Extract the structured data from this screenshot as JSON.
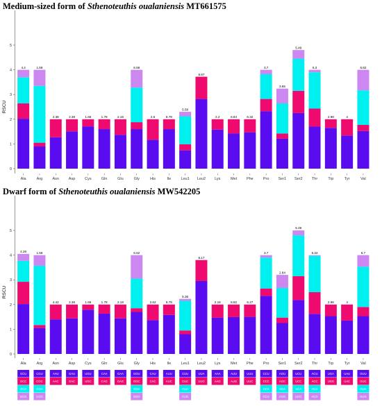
{
  "colors": {
    "c1": "#5a0cf0",
    "c2": "#ee0a6e",
    "c3": "#00f0f0",
    "c4": "#cc88f0"
  },
  "chart_data": [
    {
      "type": "bar",
      "stacked": true,
      "title_parts": [
        "Medium-sized form of ",
        "Sthenoteuthis oualaniensis",
        " MT661575"
      ],
      "ylabel": "RSCU",
      "ylim": [
        0,
        5
      ],
      "yticks": [
        0,
        1,
        2,
        3,
        4,
        5
      ],
      "categories": [
        "Ala",
        "Arg",
        "Asn",
        "Asp",
        "Cys",
        "Gln",
        "Glu",
        "Gly",
        "His",
        "Ile",
        "Leu1",
        "Leu2",
        "Lys",
        "Met",
        "Phe",
        "Pro",
        "Ser1",
        "Ser2",
        "Thr",
        "Trp",
        "Tyr",
        "Val"
      ],
      "stacks": [
        [
          2.02,
          0.62,
          1.06,
          0.3
        ],
        [
          0.9,
          0.15,
          2.3,
          0.65
        ],
        [
          1.27,
          0.73
        ],
        [
          1.51,
          0.49
        ],
        [
          1.71,
          0.29
        ],
        [
          1.6,
          0.4
        ],
        [
          1.37,
          0.63
        ],
        [
          1.6,
          0.28,
          1.4,
          0.72
        ],
        [
          1.17,
          0.83
        ],
        [
          1.6,
          0.4
        ],
        [
          0.74,
          0.25,
          1.13,
          0.18
        ],
        [
          2.82,
          0.9
        ],
        [
          1.58,
          0.42
        ],
        [
          1.42,
          0.58
        ],
        [
          1.47,
          0.53
        ],
        [
          2.32,
          0.5,
          1.0,
          0.18
        ],
        [
          1.21,
          0.21,
          1.22,
          0.6
        ],
        [
          2.25,
          0.9,
          1.3,
          0.35
        ],
        [
          1.7,
          0.73,
          1.47,
          0.1
        ],
        [
          1.65,
          0.35
        ],
        [
          1.34,
          0.66
        ],
        [
          1.52,
          0.25,
          1.4,
          0.83
        ]
      ],
      "labels": [
        "4.4",
        "1.58",
        "4.38",
        "2.38",
        "1.66",
        "1.78",
        "2.18",
        "6.58",
        "2.6",
        "8.79",
        "5.58",
        "8.97",
        "2.2",
        "6.84",
        "6.32",
        "3.7",
        "3.65",
        "5.49",
        "5.3",
        "2.98",
        "4",
        "6.82"
      ]
    },
    {
      "type": "bar",
      "stacked": true,
      "title_parts": [
        "Dwarf form of ",
        "Sthenoteuthis oualaniensis",
        " MW542205"
      ],
      "ylabel": "RSCU",
      "ylim": [
        0,
        5
      ],
      "yticks": [
        0,
        1,
        2,
        3,
        4,
        5
      ],
      "categories": [
        "Ala",
        "Arg",
        "Asn",
        "Asp",
        "Cys",
        "Gln",
        "Glu",
        "Gly",
        "His",
        "Ile",
        "Leu1",
        "Leu2",
        "Lys",
        "Met",
        "Phe",
        "Pro",
        "Ser1",
        "Ser2",
        "Thr",
        "Trp",
        "Tyr",
        "Val"
      ],
      "stacks": [
        [
          2.02,
          0.9,
          0.85,
          0.28
        ],
        [
          1.05,
          0.12,
          2.4,
          0.43
        ],
        [
          1.4,
          0.6
        ],
        [
          1.44,
          0.56
        ],
        [
          1.79,
          0.21
        ],
        [
          1.63,
          0.37
        ],
        [
          1.44,
          0.56
        ],
        [
          1.7,
          0.15,
          1.2,
          0.95
        ],
        [
          1.37,
          0.63
        ],
        [
          1.58,
          0.42
        ],
        [
          0.8,
          0.15,
          1.2,
          0.08
        ],
        [
          2.95,
          0.85
        ],
        [
          1.47,
          0.53
        ],
        [
          1.49,
          0.51
        ],
        [
          1.5,
          0.5
        ],
        [
          2.35,
          0.3,
          1.25,
          0.1
        ],
        [
          1.25,
          0.22,
          1.2,
          0.53
        ],
        [
          2.18,
          0.97,
          1.65,
          0.2
        ],
        [
          1.62,
          0.88,
          1.47,
          0.03
        ],
        [
          1.53,
          0.47
        ],
        [
          1.35,
          0.65
        ],
        [
          1.53,
          0.37,
          1.63,
          0.47
        ]
      ],
      "labels": [
        "4.26",
        "1.58",
        "4.42",
        "2.36",
        "1.66",
        "1.78",
        "2.18",
        "6.62",
        "2.62",
        "8.79",
        "5.36",
        "8.17",
        "2.18",
        "6.92",
        "6.27",
        "3.7",
        "2.84",
        "5.49",
        "5.32",
        "2.98",
        "4",
        "6.7"
      ]
    }
  ],
  "codon_table": {
    "columns": [
      [
        "GCU",
        "GCC",
        "GCA",
        "GCG"
      ],
      [
        "CGU",
        "CGC",
        "CGA",
        "CGG"
      ],
      [
        "AAU",
        "AAC"
      ],
      [
        "GAU",
        "GAC"
      ],
      [
        "UGU",
        "UGC"
      ],
      [
        "CAA",
        "CAG"
      ],
      [
        "GAA",
        "GAG"
      ],
      [
        "GGU",
        "GGC",
        "GGA",
        "GGG"
      ],
      [
        "CAU",
        "CAC"
      ],
      [
        "AUU",
        "AUC"
      ],
      [
        "CUU",
        "CUC",
        "CUA",
        "CUG"
      ],
      [
        "UUA",
        "UUG"
      ],
      [
        "AAA",
        "AAG"
      ],
      [
        "AUU",
        "AUG"
      ],
      [
        "UUU",
        "UUC"
      ],
      [
        "CCU",
        "CCC",
        "CCA",
        "CCG"
      ],
      [
        "AGU",
        "AGC",
        "AGA",
        "AGG"
      ],
      [
        "UCU",
        "UCC",
        "UCA",
        "UCG"
      ],
      [
        "ACU",
        "ACC",
        "ACA",
        "ACG"
      ],
      [
        "UGA",
        "UGG"
      ],
      [
        "UAU",
        "UAC"
      ],
      [
        "GUU",
        "GUC",
        "GUA",
        "GUG"
      ]
    ]
  }
}
